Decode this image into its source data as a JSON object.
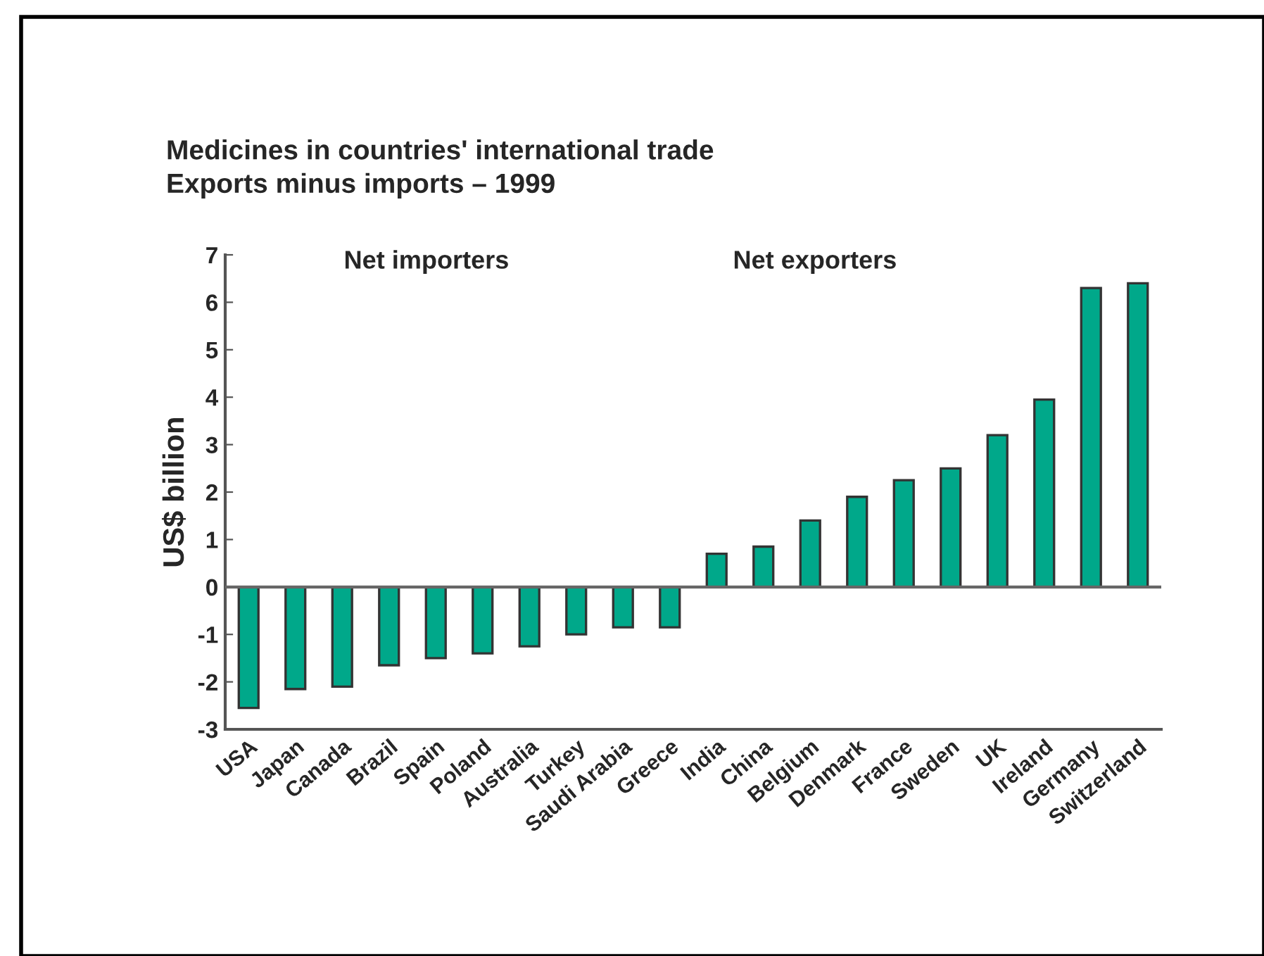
{
  "chart_data": {
    "type": "bar",
    "title": "Medicines in countries' international trade\nExports minus imports – 1999",
    "ylabel": "US$ billion",
    "categories": [
      "USA",
      "Japan",
      "Canada",
      "Brazil",
      "Spain",
      "Poland",
      "Australia",
      "Turkey",
      "Saudi Arabia",
      "Greece",
      "India",
      "China",
      "Belgium",
      "Denmark",
      "France",
      "Sweden",
      "UK",
      "Ireland",
      "Germany",
      "Switzerland"
    ],
    "values": [
      -2.55,
      -2.15,
      -2.1,
      -1.65,
      -1.5,
      -1.4,
      -1.25,
      -1.0,
      -0.85,
      -0.85,
      0.7,
      0.85,
      1.4,
      1.9,
      2.25,
      2.5,
      3.2,
      3.95,
      6.3,
      6.4
    ],
    "color": "#00a88a",
    "ylim": [
      -3,
      7
    ],
    "yticks": [
      -3,
      -2,
      -1,
      0,
      1,
      2,
      3,
      4,
      5,
      6,
      7
    ],
    "ref_lines": [
      {
        "axis": "y",
        "value": 0,
        "color": "#666666"
      }
    ],
    "annotations": [
      "Net importers",
      "Net exporters"
    ],
    "grid": false,
    "legend": false
  }
}
